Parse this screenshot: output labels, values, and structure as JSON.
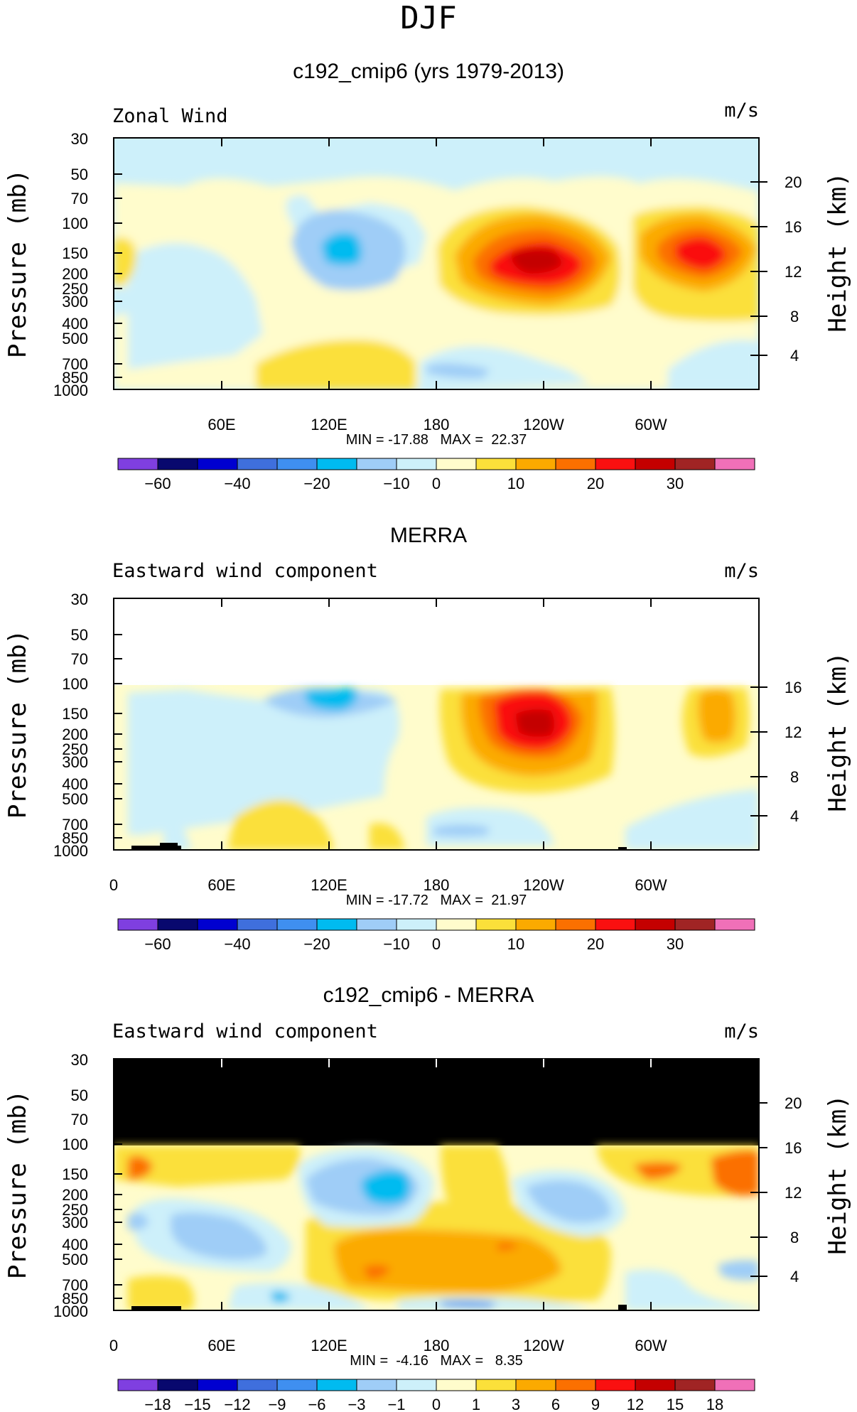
{
  "figure_title": "DJF",
  "colors": {
    "wind": [
      "#7f3fe0",
      "#08086e",
      "#0000d0",
      "#3f6fdd",
      "#3f8ff0",
      "#00bbf0",
      "#9fcdf7",
      "#cdf0fa",
      "#fffccc",
      "#fbe03a",
      "#fbaa00",
      "#fb7000",
      "#fa1010",
      "#c40000",
      "#a02424",
      "#f070b8"
    ],
    "diff": [
      "#7f3fe0",
      "#08086e",
      "#0000d0",
      "#3f6fdd",
      "#3f8ff0",
      "#00bbf0",
      "#9fcdf7",
      "#cdf0fa",
      "#fffccc",
      "#fbe03a",
      "#fbaa00",
      "#fb7000",
      "#fa1010",
      "#c40000",
      "#a02424",
      "#f070b8"
    ]
  },
  "chart_data": [
    {
      "type": "heatmap",
      "title": "c192_cmip6 (yrs 1979-2013)",
      "left_label": "Zonal Wind",
      "right_label": "m/s",
      "ylabel": "Pressure (mb)",
      "ylabel_right": "Height (km)",
      "yticks": [
        "30",
        "50",
        "70",
        "100",
        "150",
        "200",
        "250",
        "300",
        "400",
        "500",
        "700",
        "850",
        "1000"
      ],
      "yticks_right": [
        "20",
        "16",
        "12",
        "8",
        "4"
      ],
      "xticks": [
        "60E",
        "120E",
        "180",
        "120W",
        "60W"
      ],
      "stats": "MIN = -17.88   MAX =  22.37",
      "min": -17.88,
      "max": 22.37,
      "colorbar_labels": [
        "-60",
        "-40",
        "-20",
        "-10",
        "0",
        "10",
        "20",
        "30"
      ],
      "palette": "wind"
    },
    {
      "type": "heatmap",
      "title": "MERRA",
      "left_label": "Eastward wind component",
      "right_label": "m/s",
      "ylabel": "Pressure (mb)",
      "ylabel_right": "Height (km)",
      "yticks": [
        "30",
        "50",
        "70",
        "100",
        "150",
        "200",
        "250",
        "300",
        "400",
        "500",
        "700",
        "850",
        "1000"
      ],
      "yticks_right": [
        "16",
        "12",
        "8",
        "4"
      ],
      "xticks": [
        "0",
        "60E",
        "120E",
        "180",
        "120W",
        "60W"
      ],
      "stats": "MIN = -17.72   MAX =  21.97",
      "min": -17.72,
      "max": 21.97,
      "colorbar_labels": [
        "-60",
        "-40",
        "-20",
        "-10",
        "0",
        "10",
        "20",
        "30"
      ],
      "palette": "wind"
    },
    {
      "type": "heatmap",
      "title": "c192_cmip6 - MERRA",
      "left_label": "Eastward wind component",
      "right_label": "m/s",
      "ylabel": "Pressure (mb)",
      "ylabel_right": "Height (km)",
      "yticks": [
        "30",
        "50",
        "70",
        "100",
        "150",
        "200",
        "250",
        "300",
        "400",
        "500",
        "700",
        "850",
        "1000"
      ],
      "yticks_right": [
        "20",
        "16",
        "12",
        "8",
        "4"
      ],
      "xticks": [
        "0",
        "60E",
        "120E",
        "180",
        "120W",
        "60W"
      ],
      "stats": "MIN =  -4.16   MAX =   8.35",
      "min": -4.16,
      "max": 8.35,
      "colorbar_labels": [
        "-18",
        "-15",
        "-12",
        "-9",
        "-6",
        "-3",
        "-1",
        "0",
        "1",
        "3",
        "6",
        "9",
        "12",
        "15",
        "18"
      ],
      "palette": "diff"
    }
  ]
}
